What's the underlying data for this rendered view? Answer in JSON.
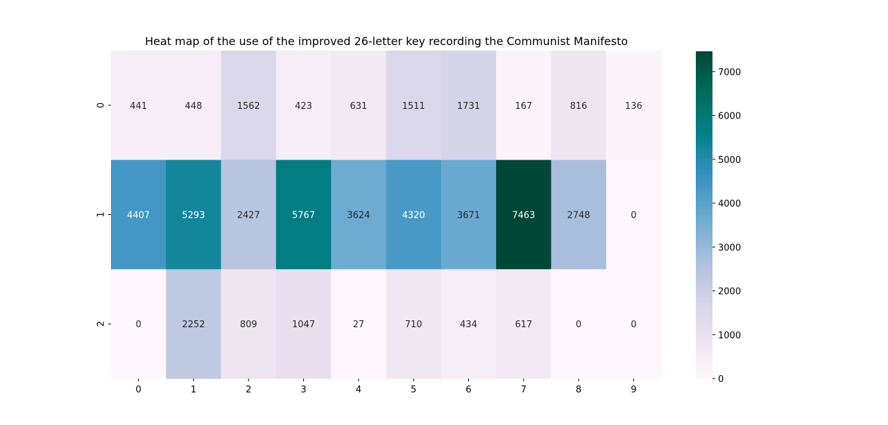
{
  "chart_data": {
    "type": "heatmap",
    "title": "Heat map of the use of the improved 26-letter key recording the Communist Manifesto",
    "x_ticks": [
      "0",
      "1",
      "2",
      "3",
      "4",
      "5",
      "6",
      "7",
      "8",
      "9"
    ],
    "y_ticks": [
      "0",
      "1",
      "2"
    ],
    "values": [
      [
        441,
        448,
        1562,
        423,
        631,
        1511,
        1731,
        167,
        816,
        136
      ],
      [
        4407,
        5293,
        2427,
        5767,
        3624,
        4320,
        3671,
        7463,
        2748,
        0
      ],
      [
        0,
        2252,
        809,
        1047,
        27,
        710,
        434,
        617,
        0,
        0
      ]
    ],
    "colorbar": {
      "ticks": [
        0,
        1000,
        2000,
        3000,
        4000,
        5000,
        6000,
        7000
      ],
      "min": 0,
      "max": 7463
    },
    "colormap": "PuBuGn",
    "colors": {
      "stops": [
        "#fff7fb",
        "#ece2f0",
        "#d0d1e6",
        "#a6bddb",
        "#67a9cf",
        "#3690c0",
        "#02818a",
        "#016c59",
        "#014636"
      ],
      "text_dark": "#262626",
      "text_light": "#ffffff"
    }
  }
}
